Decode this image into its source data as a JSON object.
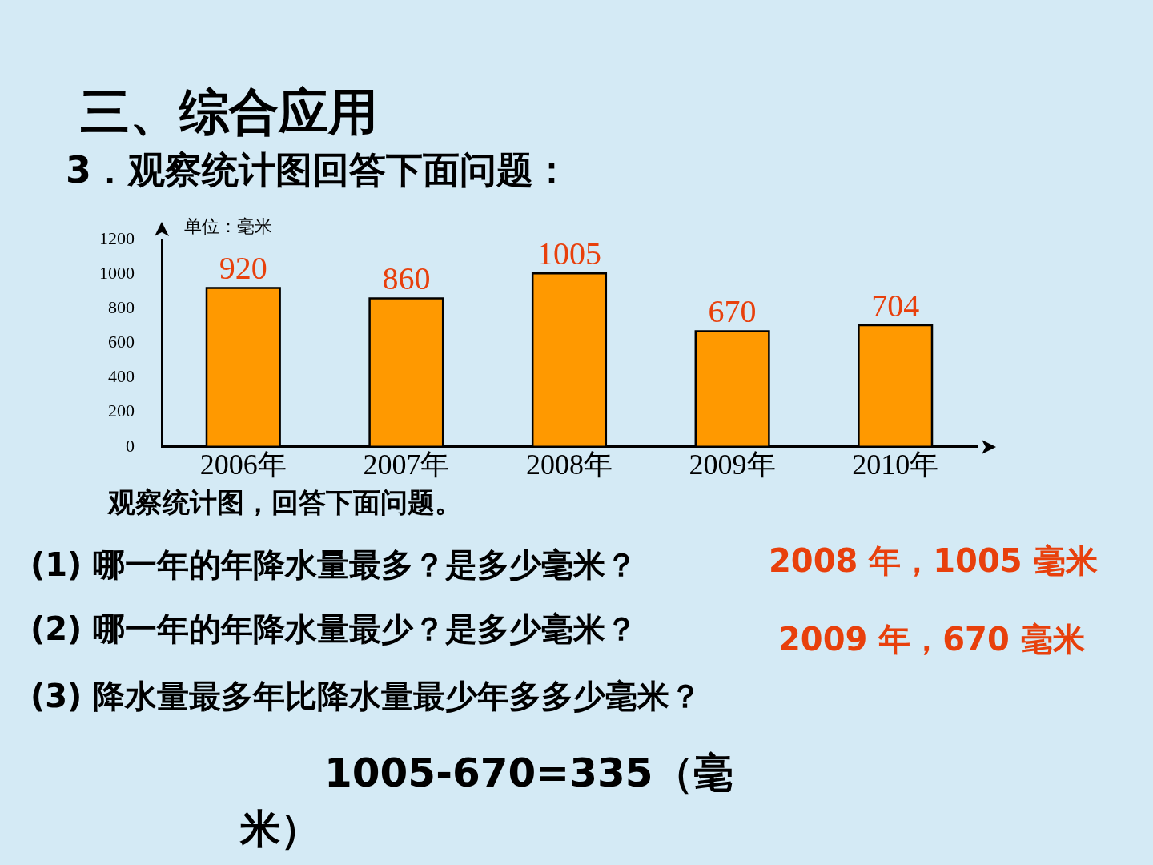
{
  "chart_data": {
    "type": "bar",
    "title": "三、综合应用",
    "subtitle": "3．观察统计图回答下面问题：",
    "ylabel": "单位：毫米",
    "categories": [
      "2006年",
      "2007年",
      "2008年",
      "2009年",
      "2010年"
    ],
    "values": [
      920,
      860,
      1005,
      670,
      704
    ],
    "color": "#ff9900",
    "ylim": [
      0,
      1200
    ],
    "yticks": [
      0,
      200,
      400,
      600,
      800,
      1000,
      1200
    ],
    "data_labels": true,
    "annotations": [
      "观察统计图，回答下面问题。",
      "(1) 哪一年的年降水量最多？是多少毫米？",
      "2008 年，1005 毫米",
      "(2) 哪一年的年降水量最少？是多少毫米？",
      "2009 年，670 毫米",
      "(3) 降水量最多年比降水量最少年多多少毫米？",
      "1005-670=335（毫米）"
    ]
  }
}
